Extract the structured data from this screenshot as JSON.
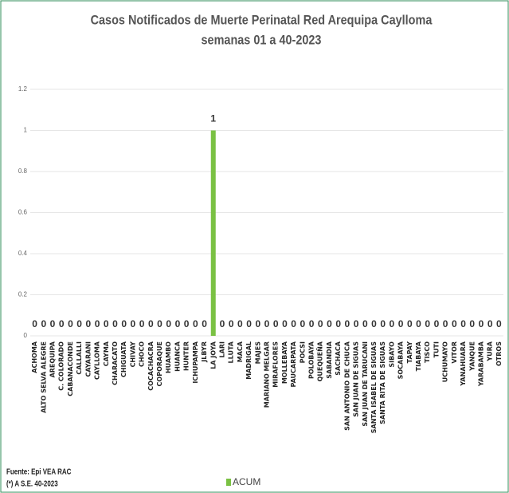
{
  "chart_data": {
    "type": "bar",
    "title": "Casos Notificados de Muerte Perinatal Red Arequipa Caylloma",
    "subtitle": "semanas 01 a 40-2023",
    "categories": [
      "ACHOMA",
      "ALTO SELVA ALEGRE",
      "AREQUIPA",
      "C. COLORADO",
      "CABANACONDE",
      "CALLALLI",
      "CAYARANI",
      "CAYLLOMA",
      "CAYMA",
      "CHARACATO",
      "CHIGUATA",
      "CHIVAY",
      "CHOCO",
      "COCACHACRA",
      "COPORAQUE",
      "HUAMBO",
      "HUANCA",
      "HUNTER",
      "ICHUPAMPA",
      "JLBYR",
      "LA JOYA",
      "LARI",
      "LLUTA",
      "MACA",
      "MADRIGAL",
      "MAJES",
      "MARIANO MELGAR",
      "MIRAFLORES",
      "MOLLEBAYA",
      "PAUCARPATA",
      "POCSI",
      "POLOBAYA",
      "QUEQUEÑA",
      "SABANDIA",
      "SACHACA",
      "SAN ANTONIO DE CHUCA",
      "SAN JUAN DE SIGUAS",
      "SAN JUAN DE TARUCANI",
      "SANTA ISABEL DE SIGUAS",
      "SANTA RITA DE SIGUAS",
      "SIBAYO",
      "SOCABAYA",
      "TAPAY",
      "TIABAYA",
      "TISCO",
      "TUTI",
      "UCHUMAYO",
      "VITOR",
      "YANAHUARA",
      "YANQUE",
      "YARABAMBA",
      "YURA",
      "OTROS"
    ],
    "series": [
      {
        "name": "ACUM",
        "color": "#7ac143",
        "values": [
          0,
          0,
          0,
          0,
          0,
          0,
          0,
          0,
          0,
          0,
          0,
          0,
          0,
          0,
          0,
          0,
          0,
          0,
          0,
          0,
          1,
          0,
          0,
          0,
          0,
          0,
          0,
          0,
          0,
          0,
          0,
          0,
          0,
          0,
          0,
          0,
          0,
          0,
          0,
          0,
          0,
          0,
          0,
          0,
          0,
          0,
          0,
          0,
          0,
          0,
          0,
          0,
          0
        ]
      }
    ],
    "ylim": [
      0,
      1.2
    ],
    "yticks": [
      0,
      0.2,
      0.4,
      0.6,
      0.8,
      1,
      1.2
    ],
    "grid": true,
    "legend": "bottom",
    "footnotes": [
      "Fuente: Epi VEA RAC",
      "(*) A S.E. 40-2023"
    ]
  }
}
